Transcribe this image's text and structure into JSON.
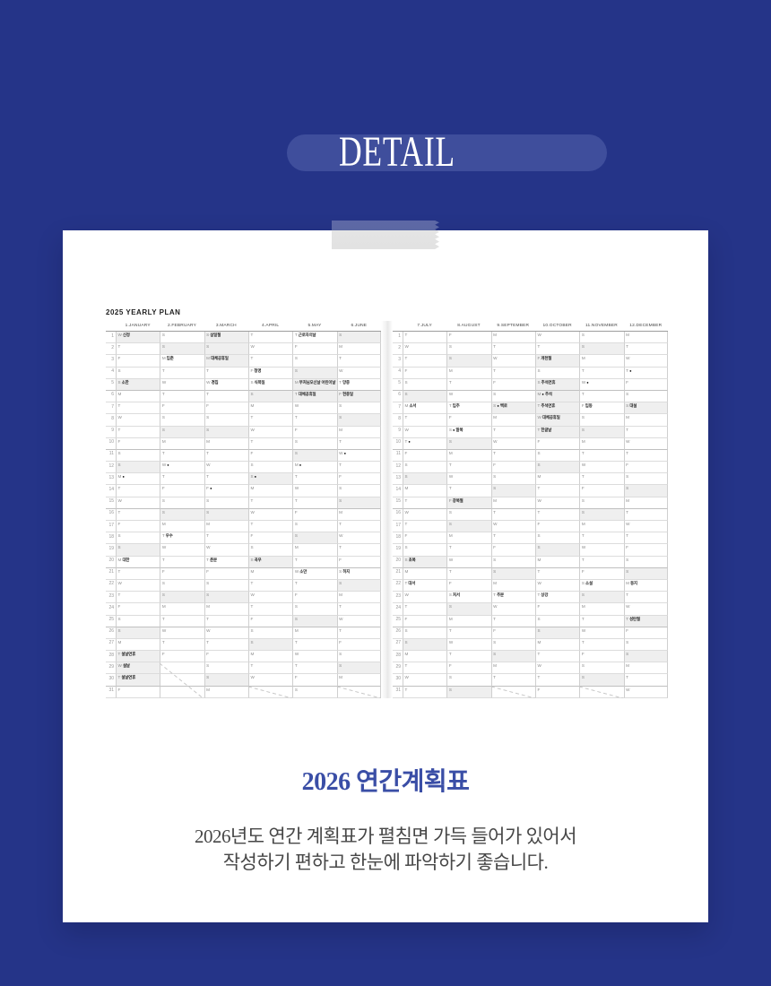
{
  "colors": {
    "background": "#253488",
    "pill": "#3f4e9c",
    "accent_text": "#3a4ea6",
    "tape": "#e4e4e4",
    "card": "#ffffff",
    "weekend_shade": "#efefef"
  },
  "header": {
    "label": "DETAIL"
  },
  "planner": {
    "title": "2025 YEARLY PLAN",
    "rows": 31,
    "weekday_letters": [
      "S",
      "M",
      "T",
      "W",
      "T",
      "F",
      "S"
    ],
    "months": [
      {
        "label": "1.JANUARY",
        "days": 31,
        "start": 3,
        "holidays": [
          1,
          28,
          29,
          30
        ],
        "moon": 13,
        "events": {
          "1": "신정",
          "5": "소한",
          "20": "대한",
          "28": "설날연휴",
          "29": "설날",
          "30": "설날연휴"
        }
      },
      {
        "label": "2.FEBRUARY",
        "days": 28,
        "start": 6,
        "holidays": [],
        "moon": 12,
        "events": {
          "3": "입춘",
          "18": "우수"
        }
      },
      {
        "label": "3.MARCH",
        "days": 31,
        "start": 6,
        "holidays": [
          1,
          3
        ],
        "moon": 14,
        "events": {
          "1": "삼일절",
          "3": "대체공휴일",
          "5": "경칩",
          "20": "춘분"
        }
      },
      {
        "label": "4.APRIL",
        "days": 30,
        "start": 2,
        "holidays": [],
        "moon": 13,
        "events": {
          "4": "청명",
          "5": "식목일",
          "20": "곡우"
        }
      },
      {
        "label": "5.MAY",
        "days": 31,
        "start": 4,
        "holidays": [
          5,
          6
        ],
        "moon": 12,
        "events": {
          "1": "근로자의날",
          "5": "부처님오신날 어린이날",
          "6": "대체공휴일",
          "21": "소만"
        }
      },
      {
        "label": "6.JUNE",
        "days": 30,
        "start": 0,
        "holidays": [
          6
        ],
        "moon": 11,
        "events": {
          "5": "망종",
          "6": "현충일",
          "21": "하지"
        }
      },
      {
        "label": "7.JULY",
        "days": 31,
        "start": 2,
        "holidays": [],
        "moon": 10,
        "events": {
          "7": "소서",
          "20": "초복",
          "22": "대서"
        }
      },
      {
        "label": "8.AUGUST",
        "days": 31,
        "start": 5,
        "holidays": [
          15
        ],
        "moon": 9,
        "events": {
          "7": "입추",
          "9": "말복",
          "15": "광복절",
          "23": "처서"
        }
      },
      {
        "label": "9.SEPTEMBER",
        "days": 30,
        "start": 1,
        "holidays": [],
        "moon": 7,
        "events": {
          "7": "백로",
          "23": "추분"
        }
      },
      {
        "label": "10.OCTOBER",
        "days": 31,
        "start": 3,
        "holidays": [
          3,
          5,
          6,
          7,
          8,
          9
        ],
        "moon": 6,
        "events": {
          "3": "개천절",
          "5": "추석연휴",
          "6": "추석",
          "7": "추석연휴",
          "8": "대체공휴일",
          "9": "한글날",
          "23": "상강"
        }
      },
      {
        "label": "11.NOVEMBER",
        "days": 30,
        "start": 6,
        "holidays": [],
        "moon": 5,
        "events": {
          "7": "입동",
          "22": "소설"
        }
      },
      {
        "label": "12.DECEMBER",
        "days": 31,
        "start": 1,
        "holidays": [
          25
        ],
        "moon": 4,
        "events": {
          "7": "대설",
          "22": "동지",
          "25": "성탄절"
        }
      }
    ]
  },
  "product": {
    "title": "2026 연간계획표",
    "description_lines": [
      "2026년도 연간 계획표가 펼침면 가득 들어가 있어서",
      "작성하기 편하고 한눈에 파악하기 좋습니다."
    ]
  }
}
